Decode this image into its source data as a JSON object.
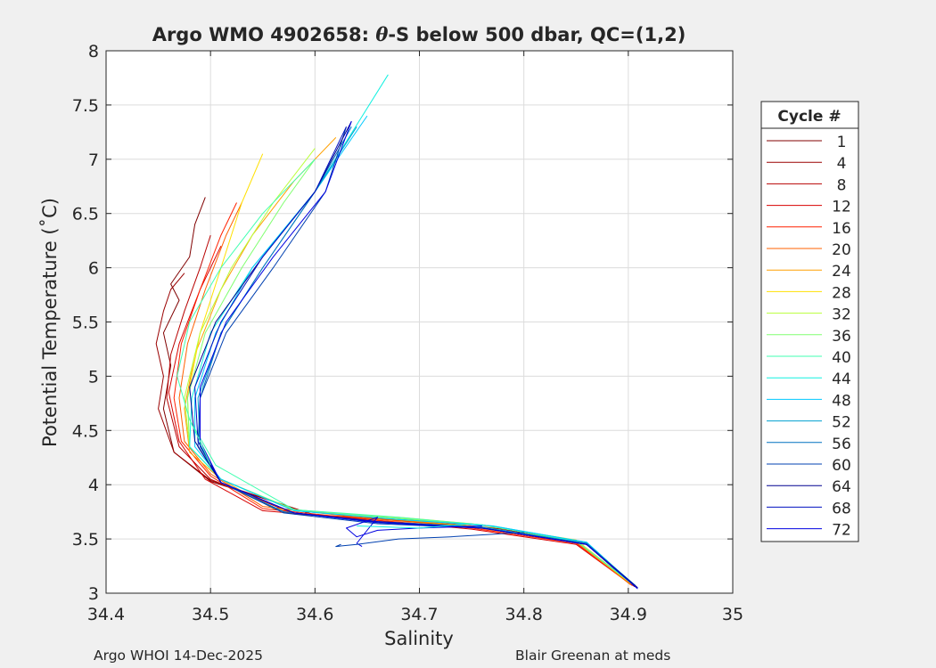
{
  "chart_data": {
    "type": "line",
    "title_prefix": "Argo WMO 4902658: ",
    "title_theta": "θ",
    "title_suffix": "-S below 500 dbar,  QC=(1,2)",
    "xlabel": "Salinity",
    "ylabel": "Potential Temperature (˚C)",
    "xlim": [
      34.4,
      35.0
    ],
    "ylim": [
      3.0,
      8.0
    ],
    "xticks": [
      "34.4",
      "34.5",
      "34.6",
      "34.7",
      "34.8",
      "34.9",
      "35"
    ],
    "yticks": [
      "3",
      "3.5",
      "4",
      "4.5",
      "5",
      "5.5",
      "6",
      "6.5",
      "7",
      "7.5",
      "8"
    ],
    "grid": true,
    "legend_title": "Cycle #",
    "legend_placement": "outside-right",
    "legend": [
      {
        "label": "1",
        "color": "#800000"
      },
      {
        "label": "4",
        "color": "#9a0000"
      },
      {
        "label": "8",
        "color": "#b80000"
      },
      {
        "label": "12",
        "color": "#d80000"
      },
      {
        "label": "16",
        "color": "#ff2000"
      },
      {
        "label": "20",
        "color": "#ff6000"
      },
      {
        "label": "24",
        "color": "#ffa000"
      },
      {
        "label": "28",
        "color": "#ffe000"
      },
      {
        "label": "32",
        "color": "#b8ff38"
      },
      {
        "label": "36",
        "color": "#80ff70"
      },
      {
        "label": "40",
        "color": "#40ffb0"
      },
      {
        "label": "44",
        "color": "#10f0e0"
      },
      {
        "label": "48",
        "color": "#00c8ff"
      },
      {
        "label": "52",
        "color": "#00a0d0"
      },
      {
        "label": "56",
        "color": "#0070c0"
      },
      {
        "label": "60",
        "color": "#0040b0"
      },
      {
        "label": "64",
        "color": "#000090"
      },
      {
        "label": "68",
        "color": "#0010c0"
      },
      {
        "label": "72",
        "color": "#0000e0"
      }
    ],
    "series": [
      {
        "color": "#800000",
        "x": [
          34.908,
          34.86,
          34.78,
          34.7,
          34.6,
          34.5,
          34.465,
          34.455,
          34.462,
          34.455,
          34.47,
          34.462,
          34.48,
          34.485,
          34.495
        ],
        "y": [
          3.05,
          3.45,
          3.58,
          3.66,
          3.72,
          4.03,
          4.3,
          4.7,
          5.1,
          5.4,
          5.7,
          5.85,
          6.1,
          6.4,
          6.65
        ]
      },
      {
        "color": "#9a0000",
        "x": [
          34.906,
          34.86,
          34.78,
          34.7,
          34.6,
          34.5,
          34.465,
          34.45,
          34.455,
          34.448,
          34.455,
          34.462,
          34.475
        ],
        "y": [
          3.06,
          3.45,
          3.59,
          3.67,
          3.72,
          4.04,
          4.3,
          4.7,
          5.0,
          5.3,
          5.6,
          5.8,
          5.95
        ]
      },
      {
        "color": "#b80000",
        "x": [
          34.905,
          34.86,
          34.77,
          34.68,
          34.58,
          34.5,
          34.47,
          34.458,
          34.462,
          34.475,
          34.49,
          34.5
        ],
        "y": [
          3.07,
          3.46,
          3.59,
          3.67,
          3.73,
          4.05,
          4.35,
          4.8,
          5.2,
          5.6,
          6.0,
          6.3
        ]
      },
      {
        "color": "#d80000",
        "x": [
          34.904,
          34.85,
          34.75,
          34.65,
          34.55,
          34.495,
          34.47,
          34.46,
          34.47,
          34.49,
          34.51
        ],
        "y": [
          3.07,
          3.45,
          3.59,
          3.68,
          3.76,
          4.05,
          4.4,
          4.85,
          5.3,
          5.8,
          6.2
        ]
      },
      {
        "color": "#ff2000",
        "x": [
          34.903,
          34.85,
          34.75,
          34.65,
          34.55,
          34.5,
          34.472,
          34.465,
          34.472,
          34.49,
          34.51,
          34.525
        ],
        "y": [
          3.08,
          3.46,
          3.6,
          3.68,
          3.78,
          4.08,
          4.4,
          4.8,
          5.3,
          5.8,
          6.3,
          6.6
        ]
      },
      {
        "color": "#ff6000",
        "x": [
          34.902,
          34.85,
          34.75,
          34.65,
          34.55,
          34.5,
          34.475,
          34.47,
          34.478,
          34.495,
          34.515,
          34.53
        ],
        "y": [
          3.08,
          3.47,
          3.61,
          3.69,
          3.8,
          4.1,
          4.4,
          4.8,
          5.3,
          5.8,
          6.3,
          6.6
        ]
      },
      {
        "color": "#ffa000",
        "x": [
          34.902,
          34.85,
          34.75,
          34.65,
          34.56,
          34.51,
          34.48,
          34.475,
          34.485,
          34.51,
          34.54,
          34.58,
          34.62
        ],
        "y": [
          3.09,
          3.48,
          3.62,
          3.7,
          3.78,
          4.05,
          4.3,
          4.7,
          5.2,
          5.8,
          6.3,
          6.8,
          7.2
        ]
      },
      {
        "color": "#ffe000",
        "x": [
          34.903,
          34.85,
          34.75,
          34.68,
          34.58,
          34.51,
          34.48,
          34.478,
          34.49,
          34.51,
          34.53,
          34.55
        ],
        "y": [
          3.09,
          3.49,
          3.64,
          3.7,
          3.76,
          4.05,
          4.35,
          4.8,
          5.4,
          6.0,
          6.6,
          7.05
        ]
      },
      {
        "color": "#b8ff38",
        "x": [
          34.904,
          34.85,
          34.76,
          34.68,
          34.58,
          34.51,
          34.48,
          34.475,
          34.49,
          34.52,
          34.56,
          34.6
        ],
        "y": [
          3.08,
          3.48,
          3.63,
          3.69,
          3.77,
          4.05,
          4.35,
          4.8,
          5.4,
          6.0,
          6.6,
          7.1
        ]
      },
      {
        "color": "#80ff70",
        "x": [
          34.905,
          34.85,
          34.76,
          34.68,
          34.58,
          34.51,
          34.48,
          34.478,
          34.495,
          34.53,
          34.57,
          34.6
        ],
        "y": [
          3.08,
          3.48,
          3.63,
          3.69,
          3.77,
          4.05,
          4.35,
          4.8,
          5.4,
          6.0,
          6.6,
          7.0
        ]
      },
      {
        "color": "#40ffb0",
        "x": [
          34.905,
          34.85,
          34.76,
          34.68,
          34.58,
          34.505,
          34.48,
          34.468,
          34.48,
          34.51,
          34.55,
          34.6
        ],
        "y": [
          3.08,
          3.48,
          3.63,
          3.7,
          3.77,
          4.18,
          4.6,
          5.0,
          5.5,
          6.0,
          6.5,
          7.0
        ]
      },
      {
        "color": "#10f0e0",
        "x": [
          34.906,
          34.86,
          34.77,
          34.68,
          34.58,
          34.51,
          34.48,
          34.482,
          34.5,
          34.54,
          34.6,
          34.67
        ],
        "y": [
          3.07,
          3.47,
          3.62,
          3.68,
          3.76,
          4.05,
          4.35,
          4.8,
          5.4,
          6.0,
          6.7,
          7.78
        ]
      },
      {
        "color": "#00c8ff",
        "x": [
          34.906,
          34.86,
          34.77,
          34.68,
          34.58,
          34.51,
          34.485,
          34.485,
          34.505,
          34.54,
          34.6,
          34.65
        ],
        "y": [
          3.07,
          3.47,
          3.62,
          3.68,
          3.76,
          4.05,
          4.35,
          4.8,
          5.4,
          6.0,
          6.7,
          7.4
        ]
      },
      {
        "color": "#00a0d0",
        "x": [
          34.907,
          34.86,
          34.76,
          34.66,
          34.57,
          34.51,
          34.49,
          34.488,
          34.51,
          34.55,
          34.6,
          34.64
        ],
        "y": [
          3.07,
          3.46,
          3.61,
          3.66,
          3.75,
          4.02,
          4.35,
          4.8,
          5.4,
          6.0,
          6.7,
          7.3
        ]
      },
      {
        "color": "#0070c0",
        "x": [
          34.907,
          34.86,
          34.76,
          34.66,
          34.57,
          34.51,
          34.49,
          34.49,
          34.51,
          34.55,
          34.6,
          34.635
        ],
        "y": [
          3.06,
          3.46,
          3.6,
          3.65,
          3.75,
          4.02,
          4.35,
          4.8,
          5.4,
          6.0,
          6.7,
          7.3
        ]
      },
      {
        "color": "#0040b0",
        "x": [
          34.908,
          34.86,
          34.76,
          34.66,
          34.57,
          34.51,
          34.488,
          34.49,
          34.515,
          34.56,
          34.61,
          34.63
        ],
        "y": [
          3.05,
          3.45,
          3.6,
          3.64,
          3.74,
          4.02,
          4.35,
          4.8,
          5.4,
          6.0,
          6.7,
          7.3
        ]
      },
      {
        "color": "#000090",
        "x": [
          34.909,
          34.86,
          34.76,
          34.66,
          34.58,
          34.51,
          34.485,
          34.48,
          34.505,
          34.55,
          34.6,
          34.635
        ],
        "y": [
          3.05,
          3.45,
          3.6,
          3.66,
          3.74,
          4.02,
          4.4,
          4.9,
          5.5,
          6.1,
          6.7,
          7.35
        ]
      },
      {
        "color": "#0010c0",
        "x": [
          34.908,
          34.86,
          34.76,
          34.66,
          34.58,
          34.51,
          34.488,
          34.485,
          34.51,
          34.55,
          34.6,
          34.63
        ],
        "y": [
          3.05,
          3.45,
          3.6,
          3.66,
          3.74,
          4.02,
          4.4,
          4.9,
          5.5,
          6.1,
          6.7,
          7.3
        ]
      },
      {
        "color": "#0000e0",
        "x": [
          34.909,
          34.86,
          34.76,
          34.66,
          34.58,
          34.51,
          34.49,
          34.49,
          34.515,
          34.56,
          34.61,
          34.635
        ],
        "y": [
          3.04,
          3.45,
          3.6,
          3.65,
          3.74,
          4.02,
          4.4,
          4.9,
          5.5,
          6.1,
          6.7,
          7.35
        ]
      },
      {
        "color": "#0000e0",
        "x": [
          34.76,
          34.7,
          34.66,
          34.64,
          34.63,
          34.66,
          34.64,
          34.645
        ],
        "y": [
          3.62,
          3.6,
          3.58,
          3.52,
          3.6,
          3.7,
          3.46,
          3.43
        ]
      },
      {
        "color": "#0040b0",
        "x": [
          34.8,
          34.73,
          34.68,
          34.64,
          34.62,
          34.625
        ],
        "y": [
          3.56,
          3.52,
          3.5,
          3.45,
          3.43,
          3.45
        ]
      },
      {
        "color": "#10f0e0",
        "x": [
          34.75,
          34.7,
          34.64
        ],
        "y": [
          3.64,
          3.6,
          3.62
        ]
      },
      {
        "color": "#40ffb0",
        "x": [
          34.5,
          34.49,
          34.48
        ],
        "y": [
          4.18,
          4.4,
          4.6
        ]
      }
    ]
  },
  "footer_left": "Argo WHOI 14-Dec-2025",
  "footer_right": "Blair Greenan at meds"
}
